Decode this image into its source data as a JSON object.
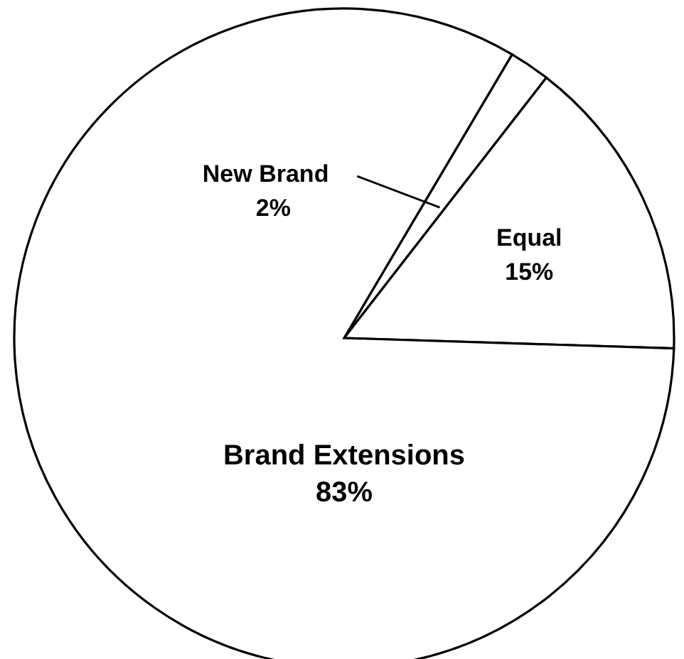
{
  "chart_data": {
    "type": "pie",
    "categories": [
      "New Brand",
      "Equal",
      "Brand Extensions"
    ],
    "values": [
      2,
      15,
      83
    ],
    "colors": [
      "#ffffff",
      "#ffffff",
      "#ffffff"
    ],
    "value_labels": [
      "2%",
      "15%",
      "83%"
    ]
  }
}
